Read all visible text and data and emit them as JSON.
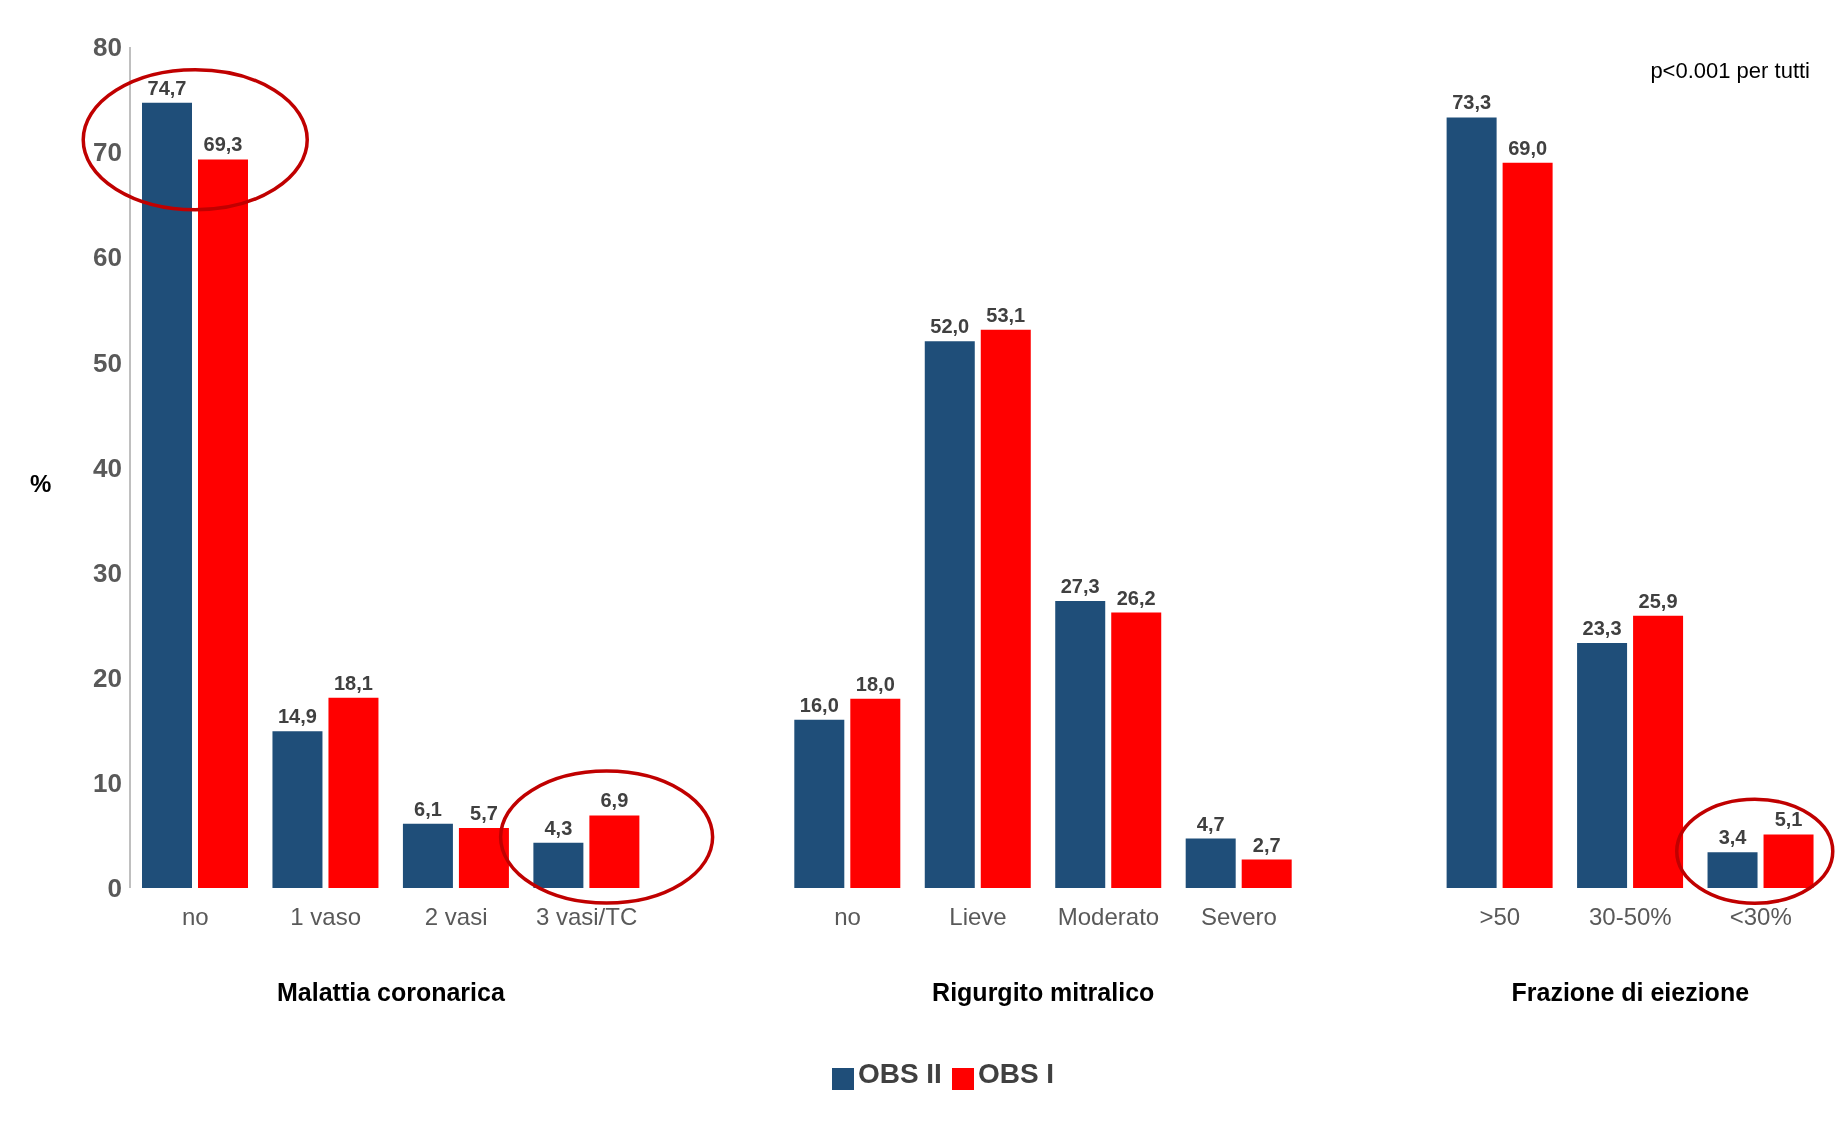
{
  "chart_data": {
    "type": "bar",
    "ylabel": "%",
    "categories": [
      "no",
      "1 vaso",
      "2 vasi",
      "3 vasi/TC",
      null,
      "no",
      "Lieve",
      "Moderato",
      "Severo",
      null,
      ">50",
      "30-50%",
      "<30%"
    ],
    "series": [
      {
        "name": "OBS II",
        "color": "#1f4e79",
        "values": [
          74.7,
          14.9,
          6.1,
          4.3,
          null,
          16.0,
          52.0,
          27.3,
          4.7,
          null,
          73.3,
          23.3,
          3.4
        ],
        "value_labels": [
          "74,7",
          "14,9",
          "6,1",
          "4,3",
          null,
          "16,0",
          "52,0",
          "27,3",
          "4,7",
          null,
          "73,3",
          "23,3",
          "3,4"
        ]
      },
      {
        "name": "OBS I",
        "color": "#ff0000",
        "values": [
          69.3,
          18.1,
          5.7,
          6.9,
          null,
          18.0,
          53.1,
          26.2,
          2.7,
          null,
          69.0,
          25.9,
          5.1
        ],
        "value_labels": [
          "69,3",
          "18,1",
          "5,7",
          "6,9",
          null,
          "18,0",
          "53,1",
          "26,2",
          "2,7",
          null,
          "69,0",
          "25,9",
          "5,1"
        ]
      }
    ],
    "ylim": [
      0,
      80
    ],
    "yticks": [
      0,
      10,
      20,
      30,
      40,
      50,
      60,
      70,
      80
    ],
    "grid": false,
    "legend": "bottom",
    "annotations": [
      "Malattia coronarica",
      "Rigurgito mitralico",
      "Frazione di eiezione",
      "p<0.001 per tutti"
    ]
  }
}
